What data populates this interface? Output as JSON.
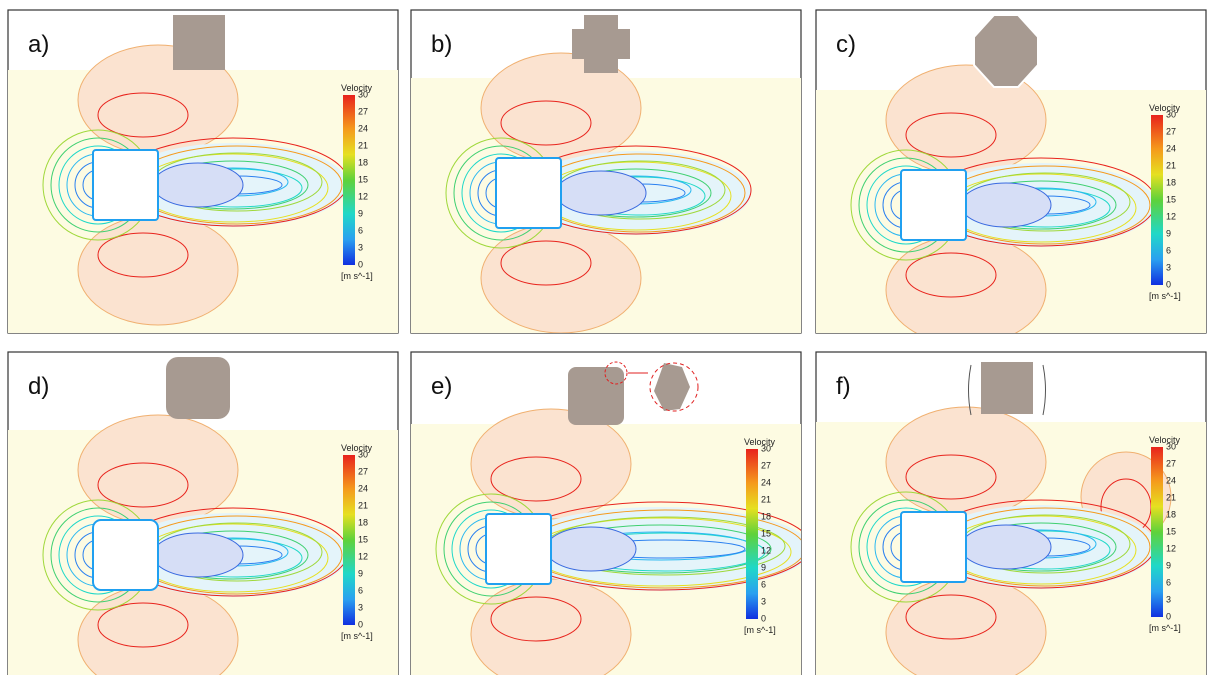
{
  "panels": [
    {
      "label": "a)"
    },
    {
      "label": "b)"
    },
    {
      "label": "c)"
    },
    {
      "label": "d)"
    },
    {
      "label": "e)"
    },
    {
      "label": "f)"
    }
  ],
  "colorbar": {
    "title": "Velocity",
    "ticks": [
      "30",
      "27",
      "24",
      "21",
      "18",
      "15",
      "12",
      "9",
      "6",
      "3",
      "0"
    ],
    "unit": "[m s^-1]"
  }
}
